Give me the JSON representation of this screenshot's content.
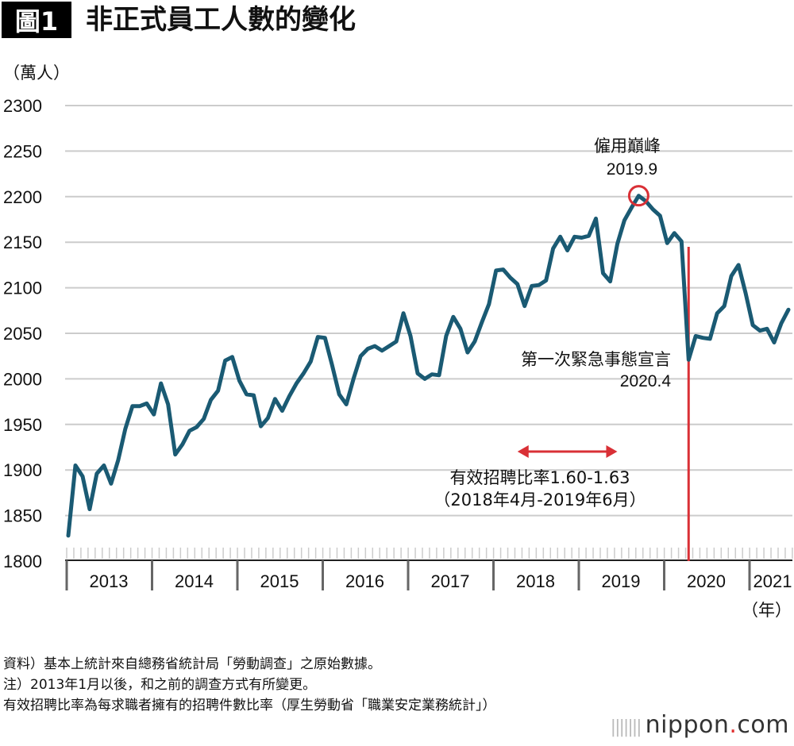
{
  "header": {
    "badge": "圖1",
    "title": "非正式員工人數的變化"
  },
  "colors": {
    "line": "#1a5a73",
    "accent": "#d93036",
    "grid": "#cccccc"
  },
  "chart_data": {
    "type": "line",
    "title": "非正式員工人數的變化",
    "ylabel": "（萬人）",
    "xlabel": "（年）",
    "ylim": [
      1800,
      2300
    ],
    "yticks": [
      1800,
      1850,
      1900,
      1950,
      2000,
      2050,
      2100,
      2150,
      2200,
      2250,
      2300
    ],
    "grid": true,
    "x_start": "2013-01",
    "x_frequency": "monthly",
    "x_tick_labels": [
      "2013",
      "2014",
      "2015",
      "2016",
      "2017",
      "2018",
      "2019",
      "2020",
      "2021"
    ],
    "values": [
      1828,
      1905,
      1893,
      1857,
      1896,
      1905,
      1885,
      1911,
      1945,
      1970,
      1970,
      1973,
      1961,
      1995,
      1972,
      1917,
      1928,
      1943,
      1947,
      1956,
      1977,
      1987,
      2020,
      2024,
      1998,
      1983,
      1982,
      1948,
      1957,
      1978,
      1965,
      1981,
      1995,
      2006,
      2019,
      2046,
      2045,
      2015,
      1983,
      1972,
      2000,
      2025,
      2033,
      2036,
      2031,
      2036,
      2041,
      2072,
      2047,
      2006,
      2000,
      2005,
      2004,
      2047,
      2068,
      2055,
      2029,
      2041,
      2062,
      2082,
      2119,
      2120,
      2111,
      2104,
      2080,
      2102,
      2103,
      2108,
      2143,
      2156,
      2141,
      2156,
      2155,
      2157,
      2176,
      2116,
      2107,
      2148,
      2174,
      2188,
      2201,
      2195,
      2186,
      2179,
      2149,
      2160,
      2151,
      2021,
      2047,
      2045,
      2044,
      2072,
      2080,
      2113,
      2125,
      2094,
      2059,
      2053,
      2055,
      2040,
      2061,
      2076
    ],
    "annotations": {
      "peak": {
        "label": "僱用巔峰",
        "date": "2019.9",
        "x": "2019-09",
        "value": 2201
      },
      "emergency": {
        "label": "第一次緊急事態宣言",
        "date": "2020.4",
        "x": "2020-04"
      },
      "ratio": {
        "label": "有效招聘比率1.60-1.63",
        "range_label": "（2018年4月-2019年6月）",
        "from": "2018-04",
        "to": "2019-06"
      }
    }
  },
  "notes": [
    "資料）基本上統計來自總務省統計局「勞動調查」之原始數據。",
    "注）2013年1月以後，和之前的調查方式有所變更。",
    "有效招聘比率為每求職者擁有的招聘件數比率（厚生勞動省「職業安定業務統計」）"
  ],
  "logo": {
    "name": "nippon",
    "dot": ".",
    "suffix": "com"
  }
}
